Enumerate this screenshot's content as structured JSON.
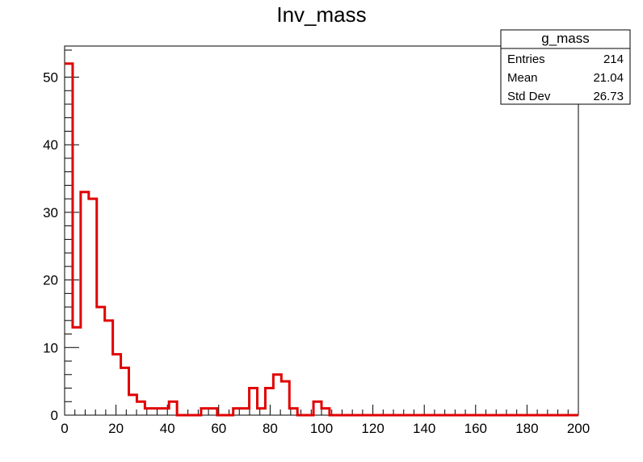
{
  "chart_data": {
    "type": "histogram",
    "title": "Inv_mass",
    "xlabel": "",
    "ylabel": "",
    "xlim": [
      0,
      200
    ],
    "ylim": [
      0,
      54.6
    ],
    "bin_width": 3.125,
    "x_ticks": [
      0,
      20,
      40,
      60,
      80,
      100,
      120,
      140,
      160,
      180,
      200
    ],
    "y_ticks": [
      0,
      10,
      20,
      30,
      40,
      50
    ],
    "line_color": "#e00000",
    "series": [
      {
        "bin_starts": [
          0,
          3.125,
          6.25,
          9.375,
          12.5,
          15.625,
          18.75,
          21.875,
          25,
          28.125,
          31.25,
          34.375,
          37.5,
          40.625,
          43.75,
          46.875,
          50,
          53.125,
          56.25,
          59.375,
          62.5,
          65.625,
          68.75,
          71.875,
          75,
          78.125,
          81.25,
          84.375,
          87.5,
          90.625,
          93.75,
          96.875,
          100,
          103.125,
          106.25,
          109.375,
          112.5,
          115.625,
          118.75,
          121.875,
          125,
          128.125,
          131.25,
          134.375,
          137.5,
          140.625,
          143.75,
          146.875,
          150,
          153.125,
          156.25,
          159.375,
          162.5,
          165.625,
          168.75,
          171.875,
          175,
          178.125,
          181.25,
          184.375,
          187.5,
          190.625,
          193.75,
          196.875
        ],
        "counts": [
          52,
          13,
          33,
          32,
          16,
          14,
          9,
          7,
          3,
          2,
          1,
          1,
          1,
          2,
          0,
          0,
          0,
          1,
          1,
          0,
          0,
          1,
          1,
          4,
          1,
          4,
          6,
          5,
          1,
          0,
          0,
          2,
          1,
          0,
          0,
          0,
          0,
          0,
          0,
          0,
          0,
          0,
          0,
          0,
          0,
          0,
          0,
          0,
          0,
          0,
          0,
          0,
          0,
          0,
          0,
          0,
          0,
          0,
          0,
          0,
          0,
          0,
          0,
          0
        ]
      }
    ]
  },
  "stats_box": {
    "name": "g_mass",
    "rows": [
      {
        "label": "Entries",
        "value": "214"
      },
      {
        "label": "Mean",
        "value": "21.04"
      },
      {
        "label": "Std Dev",
        "value": "26.73"
      }
    ]
  }
}
